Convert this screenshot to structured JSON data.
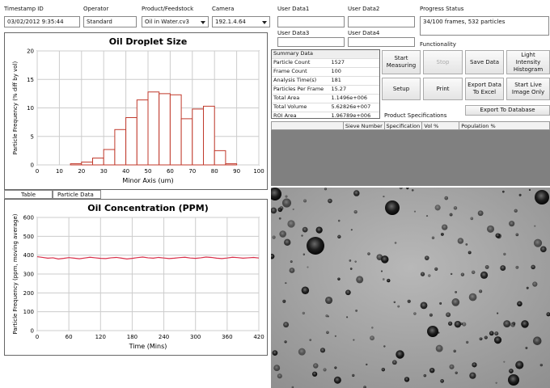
{
  "header": {
    "fields": [
      {
        "label": "Timestamp ID",
        "value": "03/02/2012 9:35:44"
      },
      {
        "label": "Operator",
        "value": "Standard"
      },
      {
        "label": "Product/Feedstock",
        "value": "Oil in Water.cv3"
      },
      {
        "label": "Camera",
        "value": "192.1.4.64"
      }
    ]
  },
  "user_data": [
    "User Data1",
    "User Data2",
    "User Data3",
    "User Data4"
  ],
  "progress": {
    "label": "Progress Status",
    "value": "34/100 frames, 532 particles"
  },
  "functionality": {
    "label": "Functionality",
    "buttons": [
      "Start Measuring",
      "Stop",
      "Save Data",
      "Light Intensity Histogram",
      "Setup",
      "Print",
      "Export Data To Excel",
      "Start Live Image Only"
    ]
  },
  "export_button": "Export To Database",
  "summary": {
    "title": "Summary Data",
    "rows": [
      [
        "Particle Count",
        "1527"
      ],
      [
        "Frame Count",
        "100"
      ],
      [
        "Analysis Time(s)",
        "181"
      ],
      [
        "Particles Per Frame",
        "15.27"
      ],
      [
        "Total Area",
        "1.1496e+006"
      ],
      [
        "Total Volume",
        "5.62826e+007"
      ],
      [
        "ROI Area",
        "1.96789e+006"
      ]
    ]
  },
  "product_specifications": {
    "title": "Product Specifications",
    "columns": [
      "Sieve Number",
      "Specification",
      "Vol %",
      "Population %"
    ]
  },
  "tabs": [
    "Table",
    "Particle Data"
  ],
  "chart_data": [
    {
      "type": "histogram",
      "title": "Oil Droplet Size",
      "x_label": "Minor Axis (um)",
      "y_label": "Particle Frequency (% diff by vol)",
      "bins": [
        15,
        20,
        25,
        30,
        35,
        40,
        45,
        50,
        55,
        60,
        65,
        70,
        75,
        80,
        85,
        90
      ],
      "values": [
        0.2,
        0.5,
        1.2,
        2.7,
        6.2,
        8.3,
        11.4,
        12.8,
        12.5,
        12.3,
        8.1,
        9.8,
        10.3,
        2.5,
        0.2
      ],
      "color": "#c0392b",
      "xlim": [
        0,
        100
      ],
      "xticks": [
        0,
        10,
        20,
        30,
        40,
        50,
        60,
        70,
        80,
        90,
        100
      ],
      "ylim": [
        0,
        20
      ],
      "yticks": [
        0,
        5,
        10,
        15,
        20
      ],
      "grid": true
    },
    {
      "type": "line",
      "title": "Oil Concentration (PPM)",
      "x_label": "Time (Mins)",
      "y_label": "Particle Frequency (ppm, moving average)",
      "x": [
        0,
        10,
        20,
        30,
        40,
        50,
        60,
        70,
        80,
        90,
        100,
        110,
        120,
        130,
        140,
        150,
        160,
        170,
        180,
        190,
        200,
        210,
        220,
        230,
        240,
        250,
        260,
        270,
        280,
        290,
        300,
        310,
        320,
        330,
        340,
        350,
        360,
        370,
        380,
        390,
        400,
        410,
        420
      ],
      "series": [
        {
          "name": "Oil Concentration",
          "color": "#d9304a",
          "values": [
            392,
            388,
            384,
            386,
            380,
            383,
            387,
            384,
            381,
            385,
            389,
            386,
            383,
            382,
            386,
            388,
            384,
            380,
            383,
            387,
            390,
            386,
            384,
            388,
            385,
            382,
            384,
            387,
            389,
            385,
            383,
            386,
            390,
            388,
            384,
            382,
            385,
            389,
            387,
            384,
            386,
            388,
            385
          ]
        }
      ],
      "xlim": [
        0,
        420
      ],
      "xticks": [
        0,
        60,
        120,
        180,
        240,
        300,
        360,
        420
      ],
      "ylim": [
        0,
        600
      ],
      "yticks": [
        0,
        100,
        200,
        300,
        400,
        500,
        600
      ],
      "grid": true
    }
  ]
}
